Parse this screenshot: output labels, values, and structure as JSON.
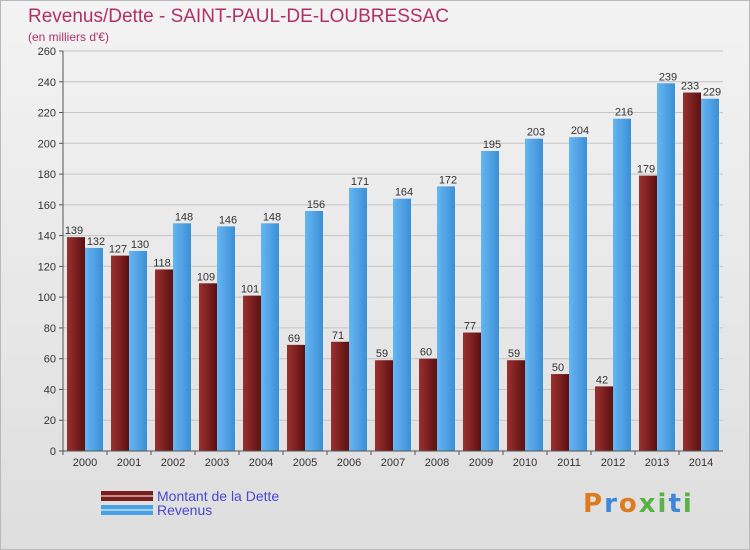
{
  "header": {
    "title": "Revenus/Dette - SAINT-PAUL-DE-LOUBRESSAC",
    "subtitle": "(en milliers d'€)"
  },
  "legend": [
    {
      "label": "Montant de la Dette",
      "color": "#7b1c1c"
    },
    {
      "label": "Revenus",
      "color": "#4aa2e6"
    }
  ],
  "logo": {
    "text": "Proxiti",
    "colors": [
      "#e07a1e",
      "#3f88d8",
      "#e07a1e",
      "#58b248",
      "#58b248",
      "#3f88d8",
      "#58b248"
    ]
  },
  "chart_data": {
    "type": "bar",
    "title": "Revenus/Dette - SAINT-PAUL-DE-LOUBRESSAC",
    "subtitle": "(en milliers d'€)",
    "categories": [
      "2000",
      "2001",
      "2002",
      "2003",
      "2004",
      "2005",
      "2006",
      "2007",
      "2008",
      "2009",
      "2010",
      "2011",
      "2012",
      "2013",
      "2014"
    ],
    "series": [
      {
        "name": "Montant de la Dette",
        "color": "#7b1c1c",
        "values": [
          139,
          127,
          118,
          109,
          101,
          69,
          71,
          59,
          60,
          77,
          59,
          50,
          42,
          179,
          233
        ]
      },
      {
        "name": "Revenus",
        "color": "#4aa2e6",
        "values": [
          132,
          130,
          148,
          146,
          148,
          156,
          171,
          164,
          172,
          195,
          203,
          204,
          216,
          239,
          229
        ]
      }
    ],
    "ylim": [
      0,
      260
    ],
    "yticks": [
      0,
      20,
      40,
      60,
      80,
      100,
      120,
      140,
      160,
      180,
      200,
      220,
      240,
      260
    ],
    "grid": true,
    "legend_position": "bottom-left"
  }
}
